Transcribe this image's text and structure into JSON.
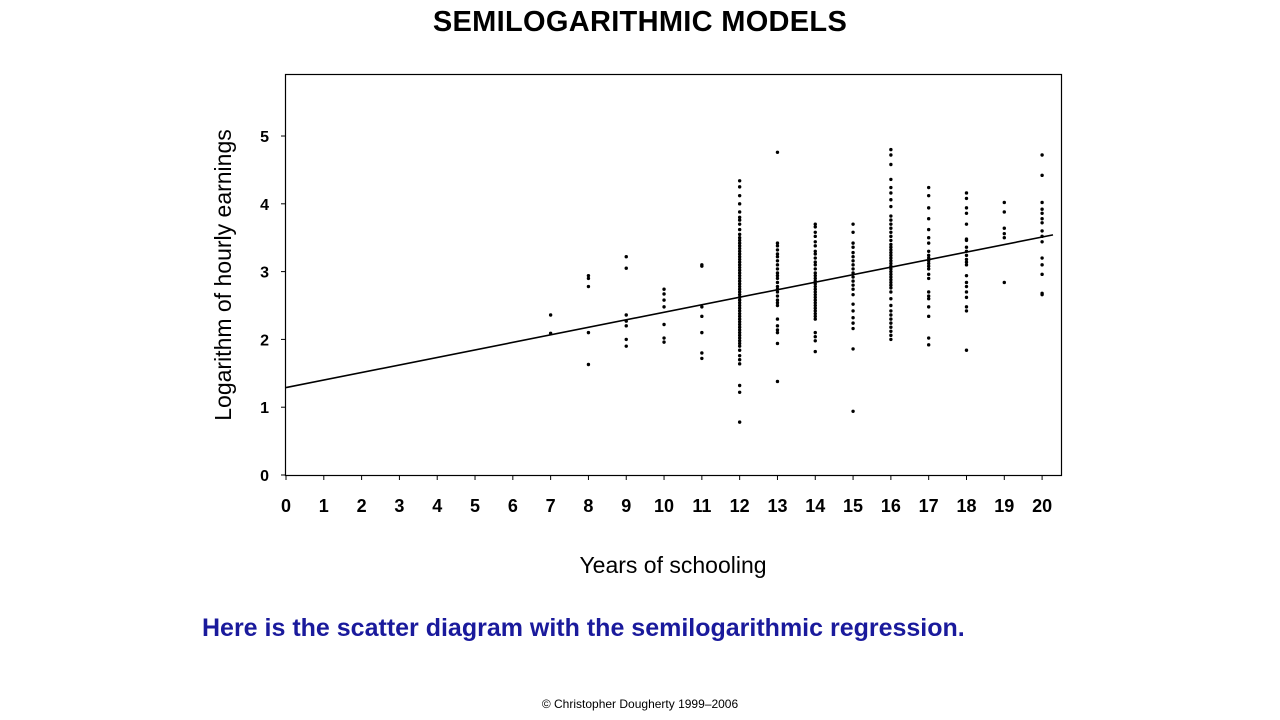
{
  "slide": {
    "title": "SEMILOGARITHMIC  MODELS",
    "caption": "Here is the scatter diagram with the semilogarithmic regression.",
    "copyright": "© Christopher Dougherty 1999–2006",
    "caption_color": "#1a1a9c"
  },
  "chart_data": {
    "type": "scatter",
    "title": "",
    "xlabel": "Years of schooling",
    "ylabel": "Logarithm of hourly earnings",
    "xlim": [
      0,
      20.5
    ],
    "ylim": [
      0,
      5.9
    ],
    "xticks": [
      0,
      1,
      2,
      3,
      4,
      5,
      6,
      7,
      8,
      9,
      10,
      11,
      12,
      13,
      14,
      15,
      16,
      17,
      18,
      19,
      20
    ],
    "yticks": [
      0,
      1,
      2,
      3,
      4,
      5
    ],
    "grid": false,
    "legend": "none",
    "regression_line": {
      "intercept": 1.29,
      "slope": 0.111,
      "x_range": [
        0,
        20.5
      ]
    },
    "points": {
      "7": [
        2.36,
        2.09
      ],
      "8": [
        2.94,
        2.9,
        2.78,
        2.1,
        1.63
      ],
      "9": [
        3.22,
        3.05,
        2.36,
        2.27,
        2.2,
        2.0,
        1.9
      ],
      "10": [
        2.74,
        2.67,
        2.58,
        2.48,
        2.22,
        2.02,
        1.96
      ],
      "11": [
        3.1,
        3.08,
        2.48,
        2.34,
        2.1,
        1.8,
        1.72
      ],
      "12": [
        4.34,
        4.25,
        4.12,
        4.0,
        3.88,
        3.8,
        3.76,
        3.7,
        3.62,
        3.55,
        3.5,
        3.46,
        3.42,
        3.38,
        3.34,
        3.3,
        3.26,
        3.22,
        3.18,
        3.14,
        3.1,
        3.06,
        3.02,
        2.98,
        2.94,
        2.9,
        2.86,
        2.82,
        2.78,
        2.74,
        2.7,
        2.66,
        2.62,
        2.58,
        2.54,
        2.5,
        2.46,
        2.42,
        2.38,
        2.34,
        2.3,
        2.26,
        2.22,
        2.18,
        2.14,
        2.1,
        2.06,
        2.02,
        1.98,
        1.94,
        1.9,
        1.84,
        1.76,
        1.7,
        1.64,
        1.32,
        1.22,
        0.78
      ],
      "13": [
        4.76,
        3.42,
        3.38,
        3.32,
        3.26,
        3.22,
        3.16,
        3.1,
        3.04,
        2.98,
        2.94,
        2.9,
        2.84,
        2.78,
        2.74,
        2.7,
        2.64,
        2.58,
        2.54,
        2.5,
        2.3,
        2.2,
        2.14,
        2.1,
        1.94,
        1.38
      ],
      "14": [
        3.7,
        3.66,
        3.58,
        3.52,
        3.44,
        3.38,
        3.3,
        3.26,
        3.2,
        3.14,
        3.1,
        3.04,
        2.98,
        2.94,
        2.9,
        2.86,
        2.82,
        2.78,
        2.74,
        2.7,
        2.66,
        2.62,
        2.58,
        2.54,
        2.5,
        2.46,
        2.42,
        2.38,
        2.34,
        2.3,
        2.1,
        2.04,
        1.98,
        1.82
      ],
      "15": [
        3.7,
        3.58,
        3.42,
        3.36,
        3.28,
        3.22,
        3.16,
        3.1,
        3.04,
        2.98,
        2.92,
        2.86,
        2.8,
        2.74,
        2.66,
        2.52,
        2.42,
        2.32,
        2.24,
        2.16,
        1.86,
        0.94
      ],
      "16": [
        4.8,
        4.72,
        4.58,
        4.36,
        4.24,
        4.16,
        4.06,
        3.96,
        3.82,
        3.76,
        3.7,
        3.64,
        3.58,
        3.52,
        3.46,
        3.4,
        3.36,
        3.32,
        3.28,
        3.24,
        3.2,
        3.16,
        3.12,
        3.08,
        3.04,
        3.0,
        2.96,
        2.92,
        2.88,
        2.84,
        2.8,
        2.76,
        2.7,
        2.6,
        2.5,
        2.42,
        2.36,
        2.3,
        2.24,
        2.18,
        2.12,
        2.06,
        2.0
      ],
      "17": [
        4.24,
        4.12,
        3.94,
        3.78,
        3.62,
        3.5,
        3.42,
        3.3,
        3.24,
        3.2,
        3.16,
        3.12,
        3.08,
        3.04,
        2.96,
        2.9,
        2.7,
        2.64,
        2.6,
        2.48,
        2.34,
        2.02,
        1.92
      ],
      "18": [
        4.16,
        4.08,
        3.94,
        3.86,
        3.7,
        3.48,
        3.46,
        3.36,
        3.3,
        3.24,
        3.18,
        3.14,
        3.1,
        2.94,
        2.84,
        2.78,
        2.7,
        2.62,
        2.48,
        2.42,
        1.84
      ],
      "19": [
        4.02,
        3.88,
        3.64,
        3.56,
        3.5,
        2.84
      ],
      "20": [
        4.72,
        4.42,
        4.02,
        3.92,
        3.86,
        3.78,
        3.72,
        3.6,
        3.52,
        3.44,
        3.2,
        3.1,
        2.96,
        2.68,
        2.66
      ]
    }
  }
}
